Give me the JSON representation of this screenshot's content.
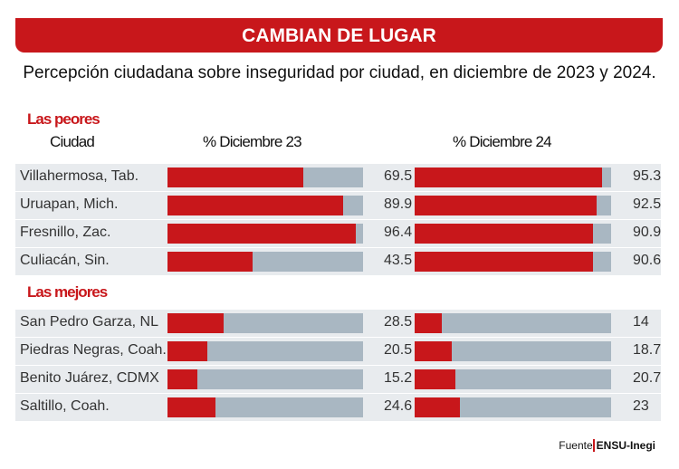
{
  "title": "CAMBIAN DE LUGAR",
  "subtitle": "Percepción ciudadana sobre inseguridad por ciudad, en diciembre de 2023 y 2024.",
  "source_label": "Fuente",
  "source_value": "ENSU-Inegi",
  "chart_data": {
    "type": "bar",
    "columns": {
      "city": "Ciudad",
      "series1": "% Diciembre 23",
      "series2": "% Diciembre 24"
    },
    "ylim": [
      0,
      100
    ],
    "colors": {
      "fill": "#c8171b",
      "track": "#a9b7c2",
      "row": "#e8ebee"
    },
    "groups": [
      {
        "label": "Las peores",
        "rows": [
          {
            "city": "Villahermosa, Tab.",
            "d23": 69.5,
            "d24": 95.3
          },
          {
            "city": "Uruapan, Mich.",
            "d23": 89.9,
            "d24": 92.5
          },
          {
            "city": "Fresnillo, Zac.",
            "d23": 96.4,
            "d24": 90.9
          },
          {
            "city": "Culiacán, Sin.",
            "d23": 43.5,
            "d24": 90.6
          }
        ]
      },
      {
        "label": "Las mejores",
        "rows": [
          {
            "city": "San Pedro Garza, NL",
            "d23": 28.5,
            "d24": 14
          },
          {
            "city": "Piedras Negras, Coah.",
            "d23": 20.5,
            "d24": 18.7
          },
          {
            "city": "Benito Juárez, CDMX",
            "d23": 15.2,
            "d24": 20.7
          },
          {
            "city": "Saltillo, Coah.",
            "d23": 24.6,
            "d24": 23
          }
        ]
      }
    ]
  }
}
